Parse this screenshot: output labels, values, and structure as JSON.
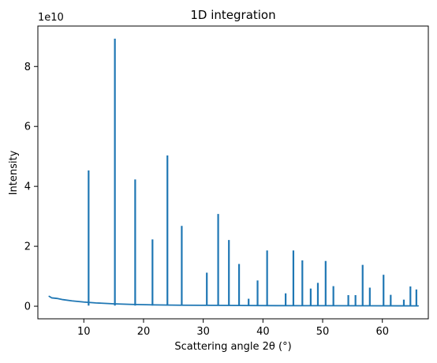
{
  "chart_data": {
    "type": "line",
    "title": "1D integration",
    "xlabel": "Scattering angle 2θ (°)",
    "ylabel": "Intensity",
    "y_offset_text": "1e10",
    "y_scale_exponent": 10,
    "xlim": [
      2.3,
      67.7
    ],
    "ylim": [
      -0.42,
      9.35
    ],
    "x_ticks": [
      10,
      20,
      30,
      40,
      50,
      60
    ],
    "y_ticks": [
      0,
      2,
      4,
      6,
      8
    ],
    "grid": false,
    "series": [
      {
        "color": "#1f77b4",
        "baseline": [
          [
            4.2,
            0.33
          ],
          [
            4.6,
            0.28
          ],
          [
            5.5,
            0.26
          ],
          [
            6.5,
            0.22
          ],
          [
            8,
            0.18
          ],
          [
            10,
            0.14
          ],
          [
            12,
            0.11
          ],
          [
            15,
            0.08
          ],
          [
            18,
            0.06
          ],
          [
            22,
            0.045
          ],
          [
            26,
            0.035
          ],
          [
            30,
            0.03
          ],
          [
            36,
            0.025
          ],
          [
            42,
            0.02
          ],
          [
            50,
            0.017
          ],
          [
            58,
            0.014
          ],
          [
            66,
            0.012
          ]
        ],
        "peaks": [
          [
            10.8,
            4.53
          ],
          [
            15.2,
            8.93
          ],
          [
            18.6,
            4.23
          ],
          [
            21.5,
            2.23
          ],
          [
            24.0,
            5.03
          ],
          [
            26.4,
            2.68
          ],
          [
            30.6,
            1.12
          ],
          [
            32.5,
            3.08
          ],
          [
            34.3,
            2.21
          ],
          [
            36.0,
            1.41
          ],
          [
            37.6,
            0.25
          ],
          [
            39.1,
            0.86
          ],
          [
            40.7,
            1.86
          ],
          [
            43.8,
            0.43
          ],
          [
            45.1,
            1.86
          ],
          [
            46.6,
            1.53
          ],
          [
            48.0,
            0.59
          ],
          [
            49.2,
            0.78
          ],
          [
            50.5,
            1.51
          ],
          [
            51.8,
            0.67
          ],
          [
            54.3,
            0.37
          ],
          [
            55.5,
            0.37
          ],
          [
            56.7,
            1.38
          ],
          [
            57.9,
            0.62
          ],
          [
            60.2,
            1.05
          ],
          [
            61.4,
            0.38
          ],
          [
            63.6,
            0.22
          ],
          [
            64.7,
            0.66
          ],
          [
            65.7,
            0.56
          ]
        ]
      }
    ]
  }
}
